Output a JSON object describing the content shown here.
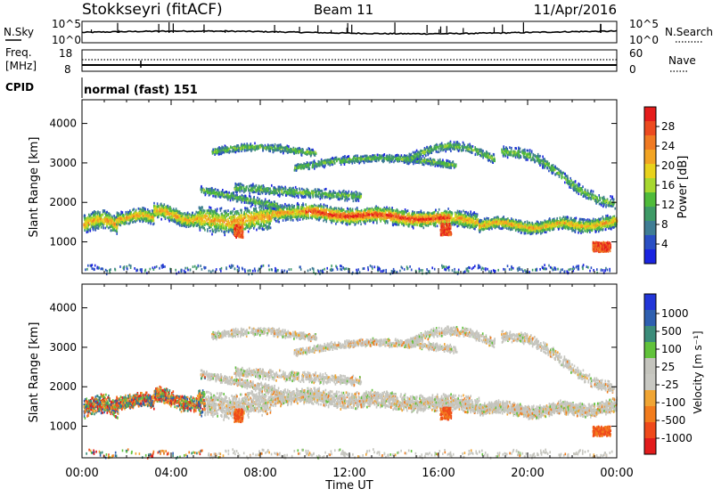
{
  "header": {
    "station": "Stokkseyri (fitACF)",
    "beam": "Beam 11",
    "date": "11/Apr/2016"
  },
  "noise_panel": {
    "left_label": "N.Sky",
    "right_label": "N.Search",
    "left_ticks": [
      "10^5",
      "10^0"
    ],
    "right_ticks": [
      "10^5",
      "10^0"
    ]
  },
  "freq_panel": {
    "left_label_1": "Freq.",
    "left_label_2": "[MHz]",
    "right_label": "Nave",
    "left_ticks": [
      "18",
      "8"
    ],
    "right_ticks": [
      "60",
      "0"
    ]
  },
  "cpid": {
    "label": "CPID",
    "value": "normal (fast) 151"
  },
  "colors": {
    "power": [
      "#1a24e0",
      "#2a4fc4",
      "#3f7d94",
      "#3e9a66",
      "#4fbb3a",
      "#a7d82f",
      "#e8d21c",
      "#f2a423",
      "#f07a22",
      "#ec4a1f",
      "#e51c1b"
    ],
    "velocity": [
      "#2236d8",
      "#2e5fb0",
      "#3b8c7a",
      "#61c23b",
      "#c4c4bd",
      "#c8c8c2",
      "#f0a534",
      "#f27c1d",
      "#ef4a1b",
      "#e21c1c"
    ]
  },
  "chart_data": [
    {
      "type": "heatmap",
      "name": "power",
      "xlabel": "Time UT",
      "ylabel": "Slant Range [km]",
      "x_ticks": [
        "00:00",
        "04:00",
        "08:00",
        "12:00",
        "16:00",
        "20:00",
        "00:00"
      ],
      "y_ticks": [
        1000,
        2000,
        3000,
        4000
      ],
      "ylim": [
        200,
        4600
      ],
      "xlim_hours": [
        0,
        24
      ],
      "colorbar_label": "Power [dB]",
      "colorbar_ticks": [
        4,
        8,
        12,
        16,
        20,
        24,
        28
      ],
      "colorbar_range": [
        0,
        32
      ]
    },
    {
      "type": "heatmap",
      "name": "velocity",
      "xlabel": "Time UT",
      "ylabel": "Slant Range [km]",
      "x_ticks": [
        "00:00",
        "04:00",
        "08:00",
        "12:00",
        "16:00",
        "20:00",
        "00:00"
      ],
      "y_ticks": [
        1000,
        2000,
        3000,
        4000
      ],
      "ylim": [
        200,
        4600
      ],
      "xlim_hours": [
        0,
        24
      ],
      "colorbar_label": "Velocity [m s⁻¹]",
      "colorbar_ticks": [
        "1000",
        "500",
        "100",
        "25",
        "-25",
        "-100",
        "-500",
        "-1000"
      ]
    }
  ]
}
